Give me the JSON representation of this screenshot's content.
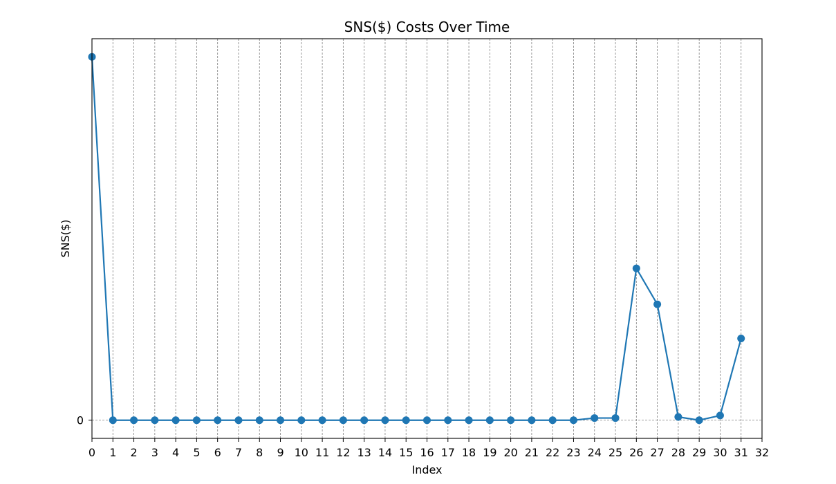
{
  "chart_data": {
    "type": "line",
    "title": "SNS($) Costs Over Time",
    "xlabel": "Index",
    "ylabel": "SNS($)",
    "x_ticks": [
      0,
      1,
      2,
      3,
      4,
      5,
      6,
      7,
      8,
      9,
      10,
      11,
      12,
      13,
      14,
      15,
      16,
      17,
      18,
      19,
      20,
      21,
      22,
      23,
      24,
      25,
      26,
      27,
      28,
      29,
      30,
      31,
      32
    ],
    "xlim": [
      0,
      32
    ],
    "y_ticks": [
      0
    ],
    "ylim": [
      -0.05,
      1.05
    ],
    "grid": "x and y=0, dashed gray",
    "series": [
      {
        "color": "#1f77b4",
        "x": [
          0,
          1,
          2,
          3,
          4,
          5,
          6,
          7,
          8,
          9,
          10,
          11,
          12,
          13,
          14,
          15,
          16,
          17,
          18,
          19,
          20,
          21,
          22,
          23,
          24,
          25,
          26,
          27,
          28,
          29,
          30,
          31
        ],
        "y": [
          1.0,
          0,
          0,
          0,
          0,
          0,
          0,
          0,
          0,
          0,
          0,
          0,
          0,
          0,
          0,
          0,
          0,
          0,
          0,
          0,
          0,
          0,
          0,
          0,
          0.006,
          0.006,
          0.418,
          0.319,
          0.009,
          0,
          0.013,
          0.225
        ]
      }
    ]
  }
}
